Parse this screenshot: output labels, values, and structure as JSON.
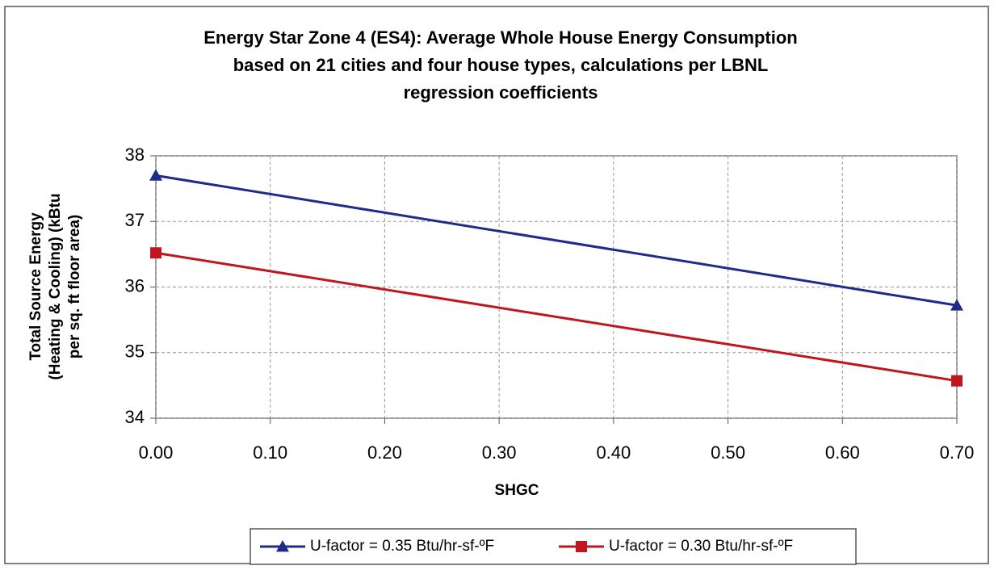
{
  "chart_data": {
    "type": "line",
    "title": [
      "Energy Star Zone 4 (ES4): Average Whole House Energy Consumption",
      "based on 21 cities and four house types, calculations per LBNL",
      "regression coefficients"
    ],
    "x_label": "SHGC",
    "y_label": [
      "Total Source Energy",
      "(Heating & Cooling) (kBtu",
      "per sq. ft floor area)"
    ],
    "x": [
      0,
      0.7
    ],
    "series": [
      {
        "name": "U-factor = 0.35 Btu/hr-sf-ºF",
        "color": "#1f2a8a",
        "marker": "triangle",
        "values": [
          37.7,
          35.72
        ]
      },
      {
        "name": "U-factor = 0.30 Btu/hr-sf-ºF",
        "color": "#c0161f",
        "marker": "square",
        "values": [
          36.52,
          34.57
        ]
      }
    ],
    "xlim": [
      0,
      0.7
    ],
    "xticks": [
      {
        "value": 0,
        "label": "0.00"
      },
      {
        "value": 0.1,
        "label": "0.10"
      },
      {
        "value": 0.2,
        "label": "0.20"
      },
      {
        "value": 0.3,
        "label": "0.30"
      },
      {
        "value": 0.4,
        "label": "0.40"
      },
      {
        "value": 0.5,
        "label": "0.50"
      },
      {
        "value": 0.6,
        "label": "0.60"
      },
      {
        "value": 0.7,
        "label": "0.70"
      }
    ],
    "ylim": [
      34,
      38
    ],
    "yticks": [
      34,
      35,
      36,
      37,
      38
    ],
    "grid": true,
    "legend": "bottom"
  }
}
